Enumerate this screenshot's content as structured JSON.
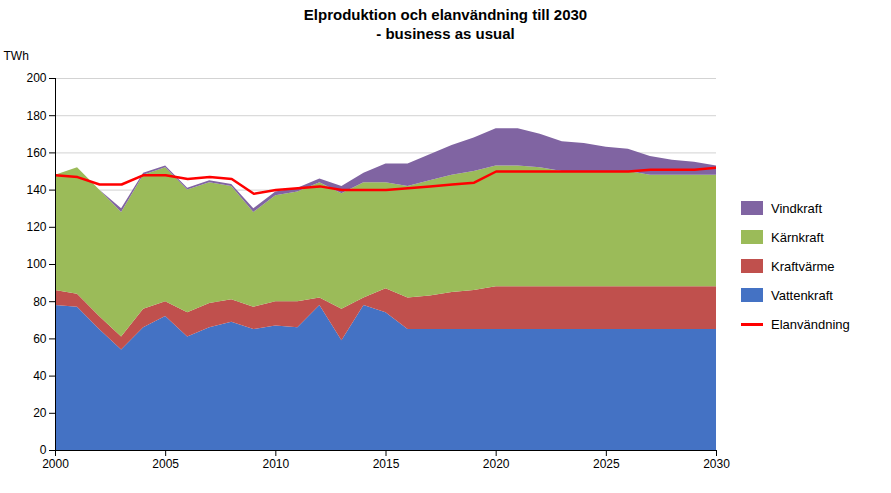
{
  "chart_data": {
    "type": "area",
    "title": "Elproduktion och elanvändning till 2030\n - business as usual",
    "ylabel": "TWh",
    "stacked": true,
    "grid": "y",
    "legend": "right",
    "xlim": [
      2000,
      2030
    ],
    "xticks": [
      2000,
      2005,
      2010,
      2015,
      2020,
      2025,
      2030
    ],
    "ylim": [
      0,
      200
    ],
    "yticks": [
      0,
      20,
      40,
      60,
      80,
      100,
      120,
      140,
      160,
      180,
      200
    ],
    "x": [
      2000,
      2001,
      2002,
      2003,
      2004,
      2005,
      2006,
      2007,
      2008,
      2009,
      2010,
      2011,
      2012,
      2013,
      2014,
      2015,
      2016,
      2017,
      2018,
      2019,
      2020,
      2021,
      2022,
      2023,
      2024,
      2025,
      2026,
      2027,
      2028,
      2029,
      2030
    ],
    "series": [
      {
        "name": "Vattenkraft",
        "type": "area",
        "color": "#4472C4",
        "values": [
          78,
          77,
          65,
          54,
          66,
          72,
          61,
          66,
          69,
          65,
          67,
          66,
          78,
          59,
          78,
          74,
          65,
          65,
          65,
          65,
          65,
          65,
          65,
          65,
          65,
          65,
          65,
          65,
          65,
          65,
          65
        ]
      },
      {
        "name": "Kraftvärme",
        "type": "area",
        "color": "#C0504D",
        "values": [
          8,
          7,
          7,
          7,
          10,
          8,
          13,
          13,
          12,
          12,
          13,
          14,
          4,
          17,
          4,
          13,
          17,
          18,
          20,
          21,
          23,
          23,
          23,
          23,
          23,
          23,
          23,
          23,
          23,
          23,
          23
        ]
      },
      {
        "name": "Kärnkraft",
        "type": "area",
        "color": "#9BBB59",
        "values": [
          62,
          68,
          68,
          67,
          72,
          72,
          66,
          65,
          61,
          51,
          57,
          59,
          62,
          62,
          62,
          57,
          60,
          62,
          63,
          64,
          65,
          65,
          64,
          62,
          62,
          62,
          62,
          60,
          60,
          60,
          60
        ]
      },
      {
        "name": "Vindkraft",
        "type": "area",
        "color": "#8064A2",
        "values": [
          0,
          0,
          0,
          2,
          1,
          1,
          1,
          1,
          1,
          2,
          2,
          2,
          2,
          4,
          5,
          10,
          12,
          14,
          16,
          18,
          20,
          20,
          18,
          16,
          15,
          13,
          12,
          10,
          8,
          7,
          5
        ]
      },
      {
        "name": "Elanvändning",
        "type": "line",
        "color": "#FF0000",
        "values": [
          148,
          147,
          143,
          143,
          148,
          148,
          146,
          147,
          146,
          138,
          140,
          141,
          142,
          140,
          140,
          140,
          141,
          142,
          143,
          144,
          150,
          150,
          150,
          150,
          150,
          150,
          150,
          151,
          151,
          151,
          152
        ]
      }
    ]
  }
}
